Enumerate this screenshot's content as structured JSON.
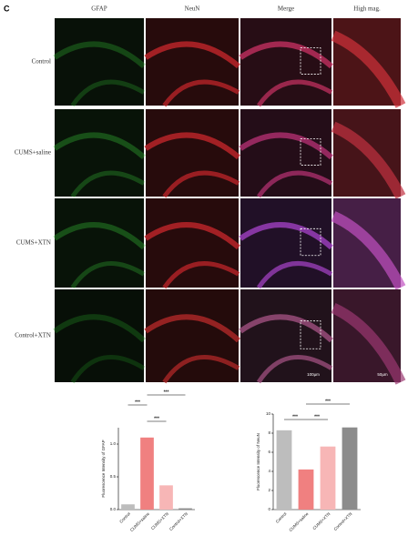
{
  "figure": {
    "panel_label": "C",
    "columns": [
      "GFAP",
      "NeuN",
      "Merge",
      "High mag."
    ],
    "rows": [
      "Control",
      "CUMS+saline",
      "CUMS+XTN",
      "Control+XTN"
    ],
    "scale_bars": [
      "100μm",
      "50μm"
    ]
  },
  "chart_data": [
    {
      "type": "bar",
      "ylabel": "Fluorescence Intensity of GFAP",
      "categories": [
        "Control",
        "CUMS+saline",
        "CUMS+XTN",
        "Control+XTN"
      ],
      "values": [
        0.08,
        1.1,
        0.37,
        0.02
      ],
      "colors": [
        "#bdbdbd",
        "#f08080",
        "#f7b6b6",
        "#8c8c8c"
      ],
      "ylim": [
        0,
        1.25
      ],
      "yticks": [
        {
          "value": 0,
          "label": "0.0"
        },
        0.5,
        {
          "value": 1,
          "label": "1.0"
        }
      ],
      "significance": [
        "***",
        "***",
        "***"
      ]
    },
    {
      "type": "bar",
      "ylabel": "Fluorescence Intensity of NeuN",
      "categories": [
        "Control",
        "CUMS+saline",
        "CUMS+XTN",
        "Control+XTN"
      ],
      "values": [
        8.3,
        4.2,
        6.6,
        8.6
      ],
      "colors": [
        "#bdbdbd",
        "#f08080",
        "#f7b6b6",
        "#8c8c8c"
      ],
      "ylim": [
        0,
        10
      ],
      "yticks": [
        0,
        2,
        4,
        6,
        8,
        10
      ],
      "significance": [
        "***",
        "***",
        "***"
      ]
    }
  ]
}
